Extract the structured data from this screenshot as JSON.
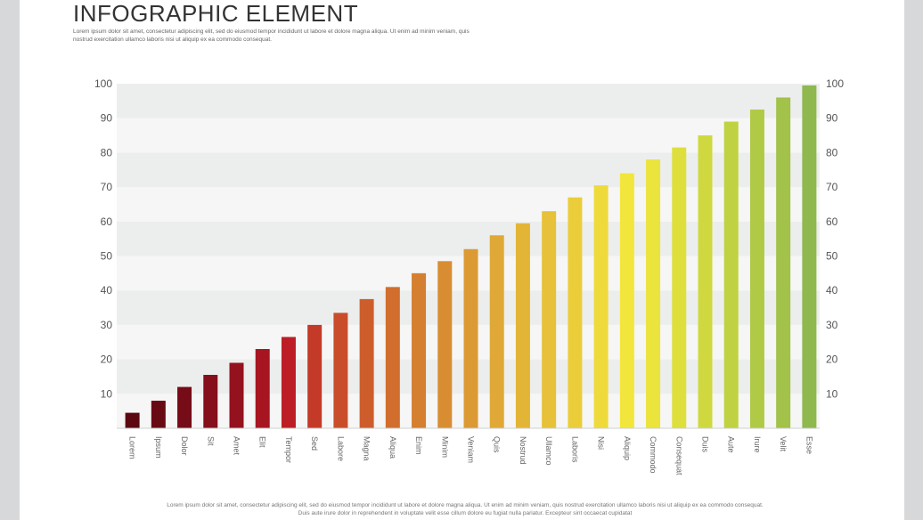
{
  "header": {
    "title": "INFOGRAPHIC ELEMENT",
    "subtitle": "Lorem ipsum dolor sit amet, consectetur adipiscing elit, sed do eiusmod tempor incididunt ut labore et dolore magna aliqua. Ut enim ad minim veniam, quis nostrud exercitation ullamco laboris nisi ut aliquip ex ea commodo consequat."
  },
  "footer": {
    "text": "Lorem ipsum dolor sit amet, consectetur adipiscing elit, sed do eiusmod tempor incididunt ut labore et dolore magna aliqua. Ut enim ad minim veniam, quis nostrud exercitation ullamco laboris nisi ut aliquip ex ea commodo consequat. Duis aute irure dolor in reprehendent in voluptate velit esse cillum dolore eu fugiat nulla pariatur. Excepteur sint occaecat cupidatat"
  },
  "chart_data": {
    "type": "bar",
    "title": "",
    "xlabel": "",
    "ylabel": "",
    "ylim": [
      0,
      100
    ],
    "yticks": [
      10,
      20,
      30,
      40,
      50,
      60,
      70,
      80,
      90,
      100
    ],
    "grid": "alternating horizontal bands",
    "categories": [
      "Lorem",
      "Ipsum",
      "Dolor",
      "Sit",
      "Amet",
      "Elit",
      "Tempor",
      "Sed",
      "Labore",
      "Magna",
      "Aliqua",
      "Enim",
      "Minim",
      "Veniam",
      "Quis",
      "Nostrud",
      "Ullamco",
      "Laboris",
      "Nisi",
      "Aliquip",
      "Commodo",
      "Consequat",
      "Duis",
      "Aute",
      "Irure",
      "Velit",
      "Esse"
    ],
    "values": [
      4.5,
      8,
      12,
      15.5,
      19,
      23,
      26.5,
      30,
      33.5,
      37.5,
      41,
      45,
      48.5,
      52,
      56,
      59.5,
      63,
      67,
      70.5,
      74,
      78,
      81.5,
      85,
      89,
      92.5,
      96,
      99.5
    ],
    "colors": [
      "#5b0810",
      "#680a13",
      "#760c17",
      "#850f1a",
      "#94111e",
      "#a71521",
      "#bd1e26",
      "#c43a28",
      "#c94d2a",
      "#cd5e2c",
      "#d16e2e",
      "#d57f30",
      "#d98d32",
      "#dc9a34",
      "#e0a836",
      "#e3b537",
      "#e7c139",
      "#ebcd3a",
      "#efda3b",
      "#f2e63c",
      "#ebe43c",
      "#dedf3d",
      "#cfd93f",
      "#c0d242",
      "#b0ca46",
      "#a2c24a",
      "#8fb84e"
    ]
  }
}
